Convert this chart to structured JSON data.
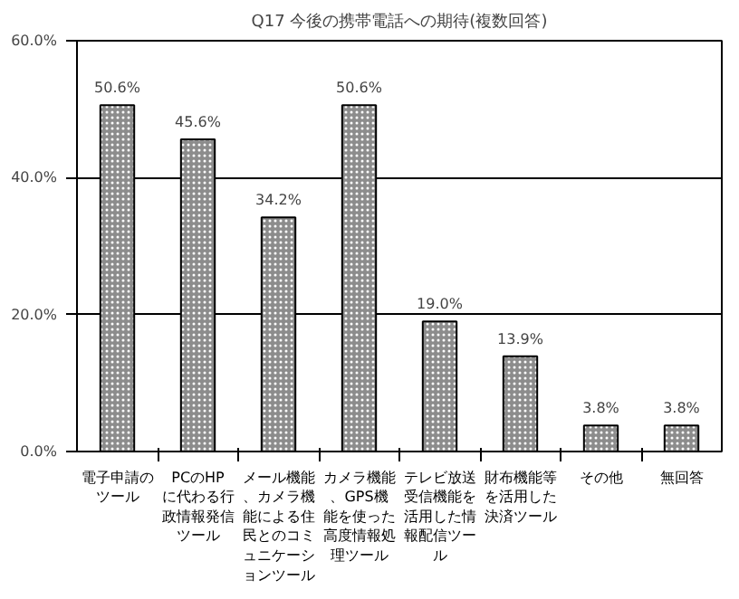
{
  "chart_data": {
    "type": "bar",
    "title": "Q17 今後の携帯電話への期待(複数回答)",
    "categories": [
      "電子申請のツール",
      "PCのHPに代わる行政情報発信ツール",
      "メール機能、カメラ機能による住民とのコミュニケーションツール",
      "カメラ機能、GPS機能を使った高度情報処理ツール",
      "テレビ放送受信機能を活用した情報配信ツール",
      "財布機能等を活用した決済ツール",
      "その他",
      "無回答"
    ],
    "values": [
      50.6,
      45.6,
      34.2,
      50.6,
      19.0,
      13.9,
      3.8,
      3.8
    ],
    "value_labels": [
      "50.6%",
      "45.6%",
      "34.2%",
      "50.6%",
      "19.0%",
      "13.9%",
      "3.8%",
      "3.8%"
    ],
    "color": "#8c8c8c",
    "ylim": [
      0,
      60
    ],
    "yticks": [
      {
        "value": 0,
        "label": "0.0%"
      },
      {
        "value": 20,
        "label": "20.0%"
      },
      {
        "value": 40,
        "label": "40.0%"
      },
      {
        "value": 60,
        "label": "60.0%"
      }
    ],
    "grid": "y",
    "legend": false
  }
}
